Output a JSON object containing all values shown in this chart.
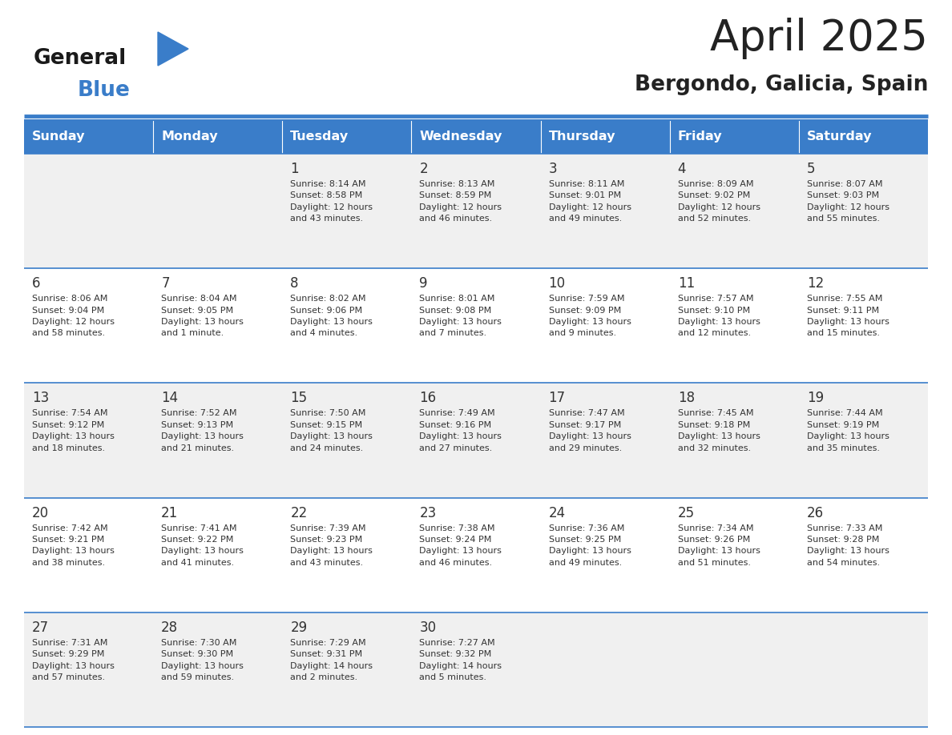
{
  "title": "April 2025",
  "subtitle": "Bergondo, Galicia, Spain",
  "days_of_week": [
    "Sunday",
    "Monday",
    "Tuesday",
    "Wednesday",
    "Thursday",
    "Friday",
    "Saturday"
  ],
  "header_bg": "#3A7DC9",
  "header_text_color": "#FFFFFF",
  "row_bg_odd": "#F0F0F0",
  "row_bg_even": "#FFFFFF",
  "cell_border_color": "#3A7DC9",
  "title_color": "#222222",
  "subtitle_color": "#222222",
  "day_num_color": "#333333",
  "cell_text_color": "#333333",
  "logo_general_color": "#1a1a1a",
  "logo_blue_color": "#3A7DC9",
  "logo_triangle_color": "#3A7DC9",
  "weeks": [
    {
      "days": [
        {
          "day": "",
          "info": ""
        },
        {
          "day": "",
          "info": ""
        },
        {
          "day": "1",
          "info": "Sunrise: 8:14 AM\nSunset: 8:58 PM\nDaylight: 12 hours\nand 43 minutes."
        },
        {
          "day": "2",
          "info": "Sunrise: 8:13 AM\nSunset: 8:59 PM\nDaylight: 12 hours\nand 46 minutes."
        },
        {
          "day": "3",
          "info": "Sunrise: 8:11 AM\nSunset: 9:01 PM\nDaylight: 12 hours\nand 49 minutes."
        },
        {
          "day": "4",
          "info": "Sunrise: 8:09 AM\nSunset: 9:02 PM\nDaylight: 12 hours\nand 52 minutes."
        },
        {
          "day": "5",
          "info": "Sunrise: 8:07 AM\nSunset: 9:03 PM\nDaylight: 12 hours\nand 55 minutes."
        }
      ]
    },
    {
      "days": [
        {
          "day": "6",
          "info": "Sunrise: 8:06 AM\nSunset: 9:04 PM\nDaylight: 12 hours\nand 58 minutes."
        },
        {
          "day": "7",
          "info": "Sunrise: 8:04 AM\nSunset: 9:05 PM\nDaylight: 13 hours\nand 1 minute."
        },
        {
          "day": "8",
          "info": "Sunrise: 8:02 AM\nSunset: 9:06 PM\nDaylight: 13 hours\nand 4 minutes."
        },
        {
          "day": "9",
          "info": "Sunrise: 8:01 AM\nSunset: 9:08 PM\nDaylight: 13 hours\nand 7 minutes."
        },
        {
          "day": "10",
          "info": "Sunrise: 7:59 AM\nSunset: 9:09 PM\nDaylight: 13 hours\nand 9 minutes."
        },
        {
          "day": "11",
          "info": "Sunrise: 7:57 AM\nSunset: 9:10 PM\nDaylight: 13 hours\nand 12 minutes."
        },
        {
          "day": "12",
          "info": "Sunrise: 7:55 AM\nSunset: 9:11 PM\nDaylight: 13 hours\nand 15 minutes."
        }
      ]
    },
    {
      "days": [
        {
          "day": "13",
          "info": "Sunrise: 7:54 AM\nSunset: 9:12 PM\nDaylight: 13 hours\nand 18 minutes."
        },
        {
          "day": "14",
          "info": "Sunrise: 7:52 AM\nSunset: 9:13 PM\nDaylight: 13 hours\nand 21 minutes."
        },
        {
          "day": "15",
          "info": "Sunrise: 7:50 AM\nSunset: 9:15 PM\nDaylight: 13 hours\nand 24 minutes."
        },
        {
          "day": "16",
          "info": "Sunrise: 7:49 AM\nSunset: 9:16 PM\nDaylight: 13 hours\nand 27 minutes."
        },
        {
          "day": "17",
          "info": "Sunrise: 7:47 AM\nSunset: 9:17 PM\nDaylight: 13 hours\nand 29 minutes."
        },
        {
          "day": "18",
          "info": "Sunrise: 7:45 AM\nSunset: 9:18 PM\nDaylight: 13 hours\nand 32 minutes."
        },
        {
          "day": "19",
          "info": "Sunrise: 7:44 AM\nSunset: 9:19 PM\nDaylight: 13 hours\nand 35 minutes."
        }
      ]
    },
    {
      "days": [
        {
          "day": "20",
          "info": "Sunrise: 7:42 AM\nSunset: 9:21 PM\nDaylight: 13 hours\nand 38 minutes."
        },
        {
          "day": "21",
          "info": "Sunrise: 7:41 AM\nSunset: 9:22 PM\nDaylight: 13 hours\nand 41 minutes."
        },
        {
          "day": "22",
          "info": "Sunrise: 7:39 AM\nSunset: 9:23 PM\nDaylight: 13 hours\nand 43 minutes."
        },
        {
          "day": "23",
          "info": "Sunrise: 7:38 AM\nSunset: 9:24 PM\nDaylight: 13 hours\nand 46 minutes."
        },
        {
          "day": "24",
          "info": "Sunrise: 7:36 AM\nSunset: 9:25 PM\nDaylight: 13 hours\nand 49 minutes."
        },
        {
          "day": "25",
          "info": "Sunrise: 7:34 AM\nSunset: 9:26 PM\nDaylight: 13 hours\nand 51 minutes."
        },
        {
          "day": "26",
          "info": "Sunrise: 7:33 AM\nSunset: 9:28 PM\nDaylight: 13 hours\nand 54 minutes."
        }
      ]
    },
    {
      "days": [
        {
          "day": "27",
          "info": "Sunrise: 7:31 AM\nSunset: 9:29 PM\nDaylight: 13 hours\nand 57 minutes."
        },
        {
          "day": "28",
          "info": "Sunrise: 7:30 AM\nSunset: 9:30 PM\nDaylight: 13 hours\nand 59 minutes."
        },
        {
          "day": "29",
          "info": "Sunrise: 7:29 AM\nSunset: 9:31 PM\nDaylight: 14 hours\nand 2 minutes."
        },
        {
          "day": "30",
          "info": "Sunrise: 7:27 AM\nSunset: 9:32 PM\nDaylight: 14 hours\nand 5 minutes."
        },
        {
          "day": "",
          "info": ""
        },
        {
          "day": "",
          "info": ""
        },
        {
          "day": "",
          "info": ""
        }
      ]
    }
  ]
}
